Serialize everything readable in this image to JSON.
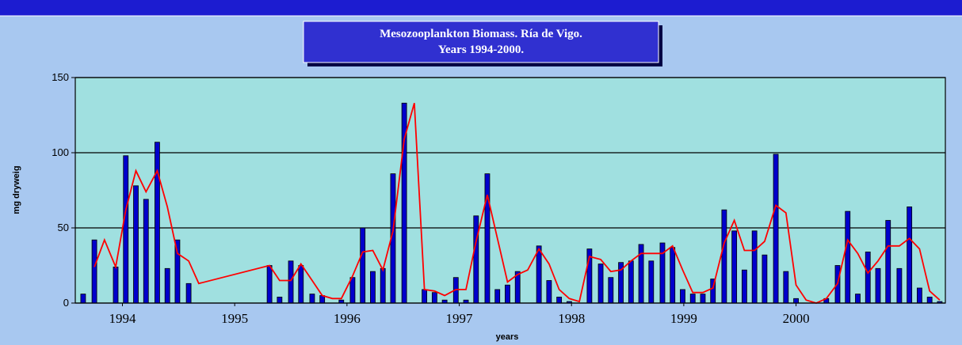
{
  "chart_data": {
    "type": "bar-line",
    "title": [
      "Mesozooplankton Biomass. Ría de Vigo.",
      "Years 1994-2000."
    ],
    "x_label": "years",
    "y_label": "mg dryweig",
    "x": [
      1993.65,
      1993.75,
      1993.84,
      1993.94,
      1994.03,
      1994.12,
      1994.21,
      1994.31,
      1994.4,
      1994.49,
      1994.59,
      1994.68,
      1995.31,
      1995.4,
      1995.5,
      1995.59,
      1995.69,
      1995.78,
      1995.87,
      1995.95,
      1996.05,
      1996.14,
      1996.23,
      1996.32,
      1996.41,
      1996.51,
      1996.6,
      1996.69,
      1996.78,
      1996.87,
      1996.97,
      1997.06,
      1997.15,
      1997.25,
      1997.34,
      1997.43,
      1997.52,
      1997.61,
      1997.71,
      1997.8,
      1997.89,
      1997.98,
      1998.07,
      1998.16,
      1998.26,
      1998.35,
      1998.44,
      1998.53,
      1998.62,
      1998.71,
      1998.81,
      1998.9,
      1998.99,
      1999.08,
      1999.17,
      1999.26,
      1999.36,
      1999.45,
      1999.54,
      1999.63,
      1999.72,
      1999.82,
      1999.91,
      2000.0,
      2000.09,
      2000.18,
      2000.27,
      2000.37,
      2000.46,
      2000.55,
      2000.64,
      2000.73,
      2000.82,
      2000.92,
      2001.01,
      2001.1,
      2001.19,
      2001.28
    ],
    "series": [
      {
        "type": "bar",
        "color": "#0000cc",
        "values": [
          6,
          42,
          null,
          24,
          98,
          78,
          69,
          107,
          23,
          42,
          13,
          null,
          25,
          4,
          28,
          25,
          6,
          5,
          null,
          2,
          17,
          50,
          21,
          23,
          86,
          133,
          null,
          9,
          7,
          2,
          17,
          2,
          58,
          86,
          9,
          12,
          21,
          null,
          38,
          15,
          4,
          1,
          null,
          36,
          26,
          17,
          27,
          28,
          39,
          28,
          40,
          37,
          9,
          6,
          6,
          16,
          62,
          48,
          22,
          48,
          32,
          99,
          21,
          3,
          null,
          null,
          3,
          25,
          61,
          6,
          34,
          23,
          55,
          23,
          64,
          10,
          4,
          1
        ]
      },
      {
        "type": "line",
        "color": "#ff0000",
        "values": [
          null,
          24,
          42,
          24,
          62,
          88,
          74,
          88,
          64,
          33,
          28,
          13,
          25,
          15,
          15,
          26,
          15,
          5,
          3,
          3,
          18,
          34,
          35,
          22,
          48,
          109,
          133,
          9,
          8,
          5,
          9,
          9,
          41,
          72,
          43,
          14,
          19,
          22,
          36,
          26,
          9,
          3,
          1,
          31,
          29,
          21,
          22,
          28,
          33,
          33,
          33,
          38,
          22,
          7,
          7,
          10,
          40,
          55,
          35,
          35,
          41,
          65,
          60,
          12,
          2,
          0,
          3,
          13,
          42,
          33,
          20,
          28,
          38,
          38,
          43,
          36,
          8,
          2
        ]
      }
    ],
    "xlim": [
      1993.58,
      2001.33
    ],
    "xticks": [
      1994,
      1995,
      1996,
      1997,
      1998,
      1999,
      2000
    ],
    "ylim": [
      0,
      150
    ],
    "yticks": [
      0,
      50,
      100,
      150
    ],
    "grid": true,
    "plot_color": "#a0e0e0"
  }
}
